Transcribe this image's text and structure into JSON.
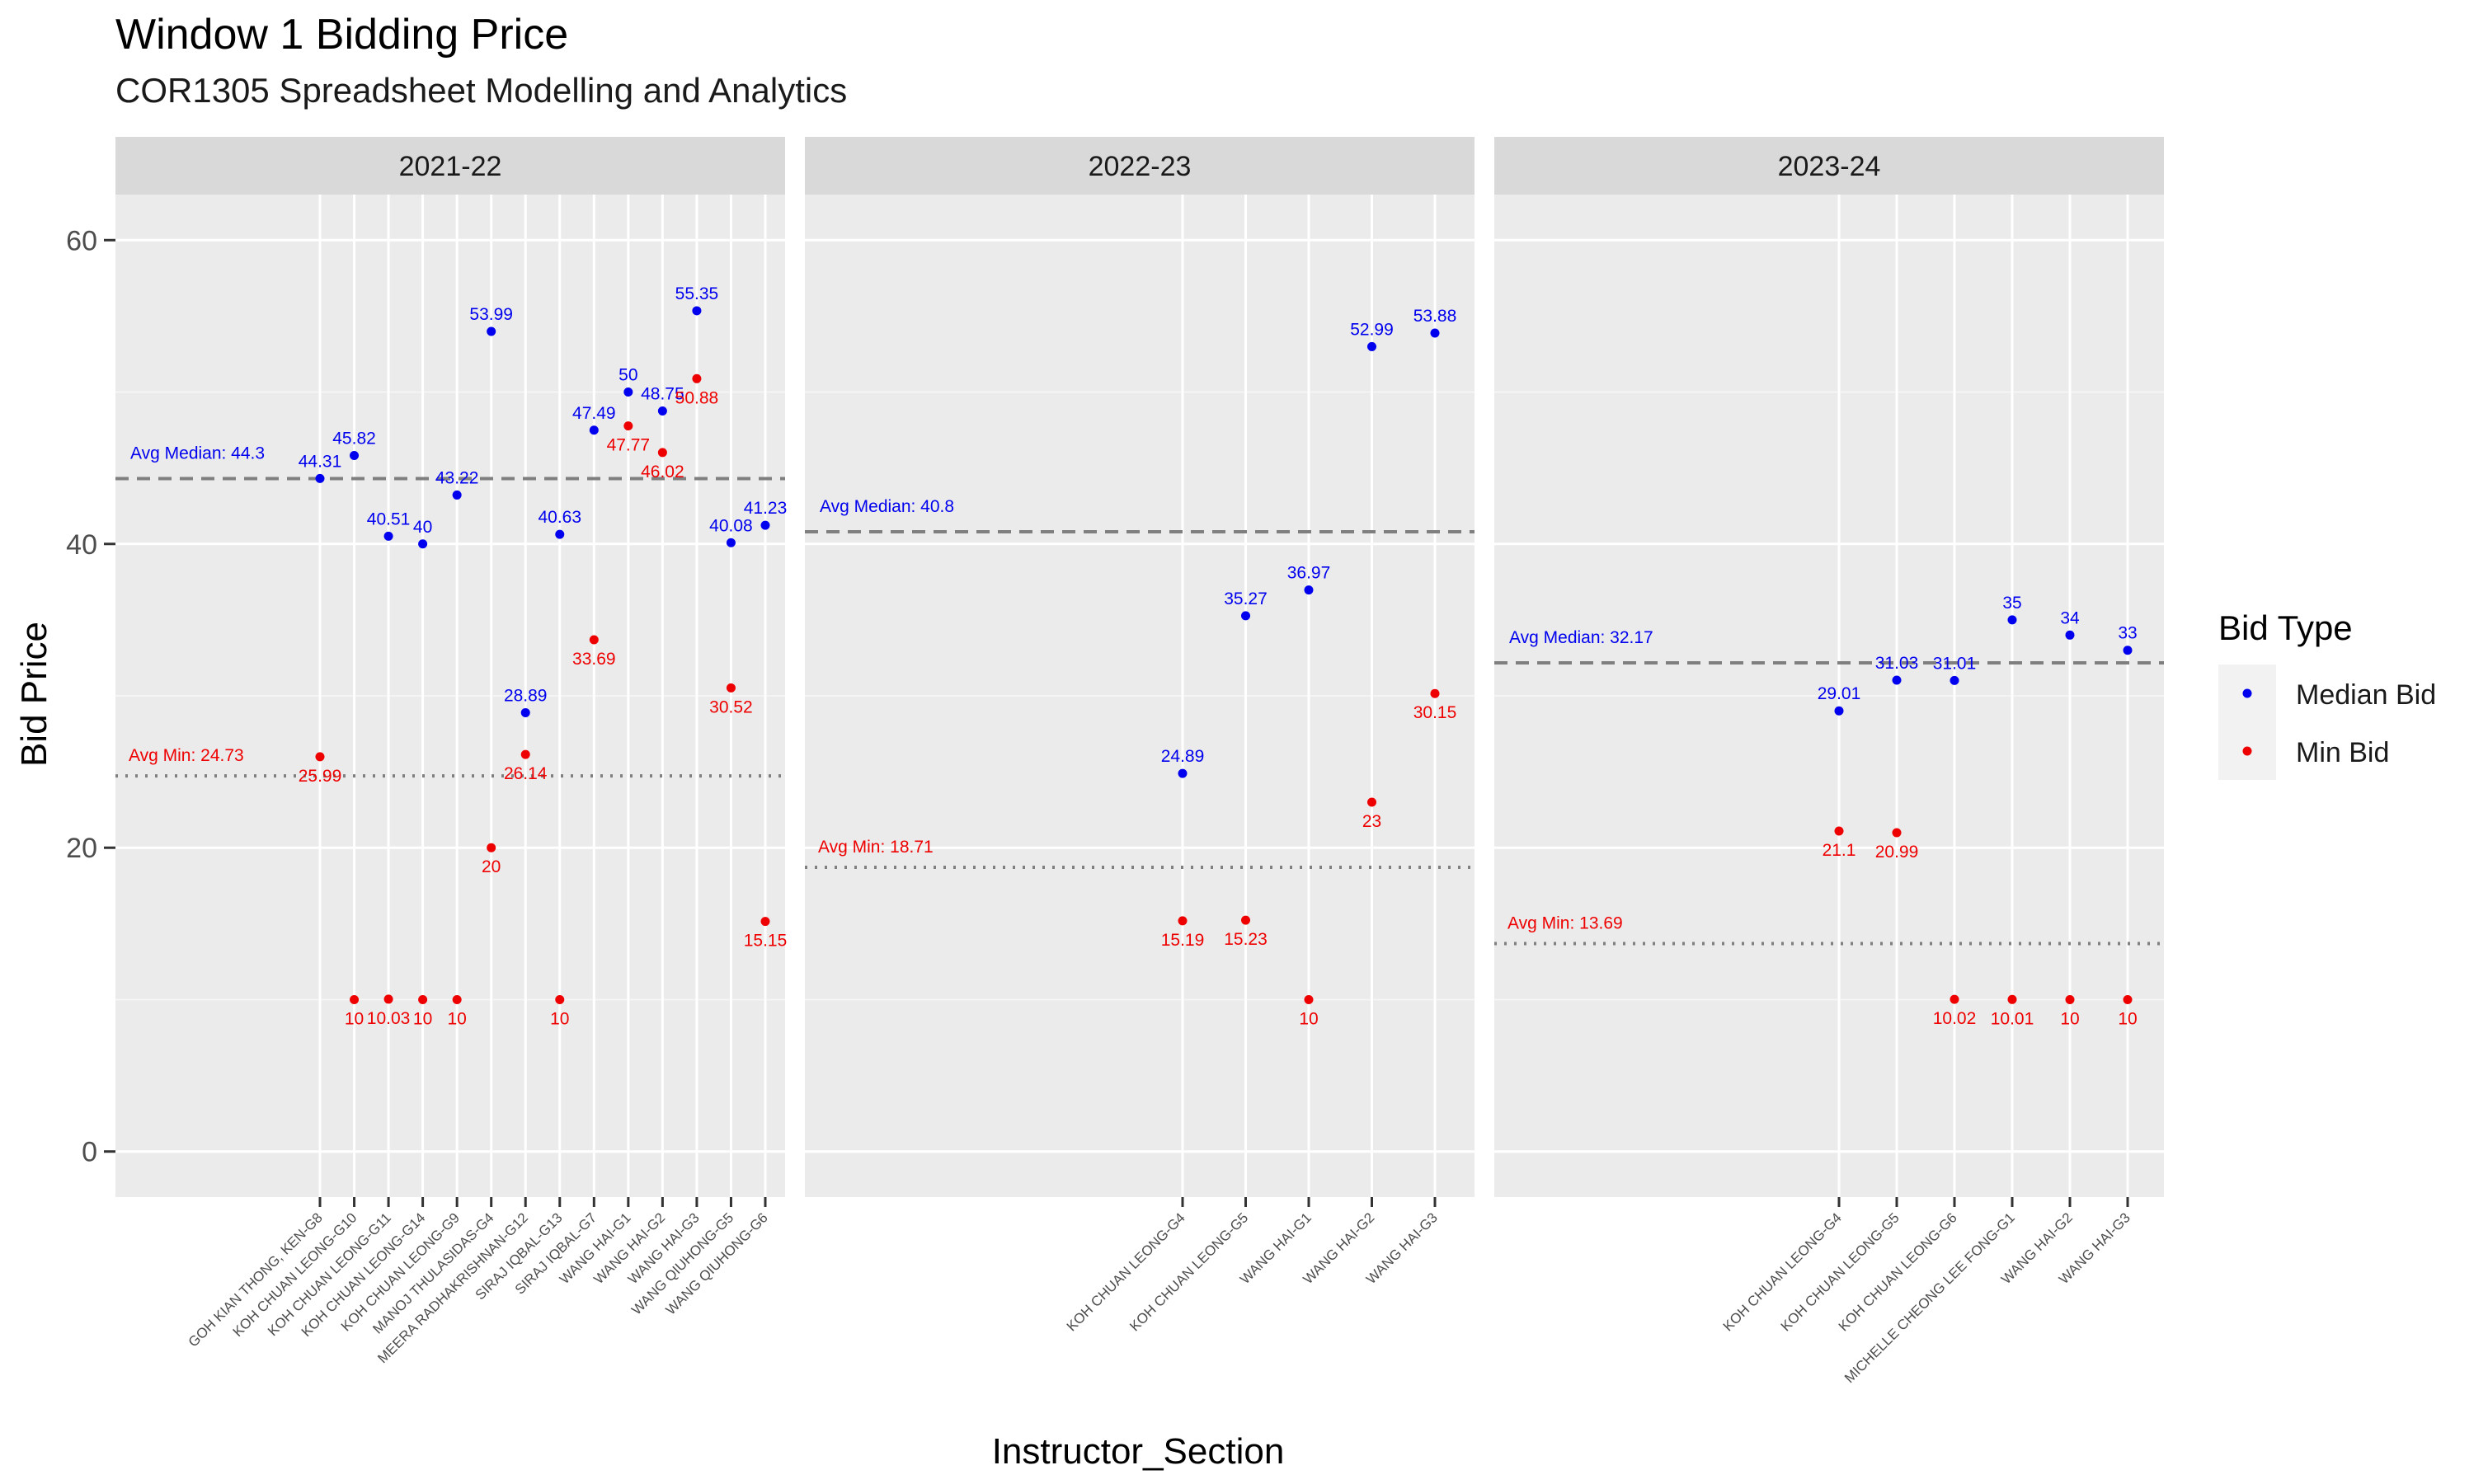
{
  "chart_data": {
    "type": "scatter",
    "title": "Window 1 Bidding Price",
    "subtitle": "COR1305 Spreadsheet Modelling and Analytics",
    "xlabel": "Instructor_Section",
    "ylabel": "Bid Price",
    "ylim": [
      -3,
      63
    ],
    "yticks": [
      0,
      20,
      40,
      60
    ],
    "grid": true,
    "legend": {
      "title": "Bid Type",
      "position": "right",
      "items": [
        {
          "name": "Median Bid",
          "color": "#0000ee"
        },
        {
          "name": "Min Bid",
          "color": "#ee0000"
        }
      ]
    },
    "panels": [
      {
        "facet": "2021-22",
        "categories": [
          "GOH KIAN THONG, KEN-G8",
          "KOH CHUAN LEONG-G10",
          "KOH CHUAN LEONG-G11",
          "KOH CHUAN LEONG-G14",
          "KOH CHUAN LEONG-G9",
          "MANOJ THULASIDAS-G4",
          "MEERA RADHAKRISHNAN-G12",
          "SIRAJ IQBAL-G13",
          "SIRAJ IQBAL-G7",
          "WANG HAI-G1",
          "WANG HAI-G2",
          "WANG HAI-G3",
          "WANG QIUHONG-G5",
          "WANG QIUHONG-G6"
        ],
        "series": [
          {
            "name": "Median Bid",
            "values": [
              44.31,
              45.82,
              40.51,
              40,
              43.22,
              53.99,
              28.89,
              40.63,
              47.49,
              50,
              48.75,
              55.35,
              40.08,
              41.23
            ],
            "labels": [
              "44.31",
              "45.82",
              "40.51",
              "40",
              "43.22",
              "53.99",
              "28.89",
              "40.63",
              "47.49",
              "50",
              "48.75",
              "55.35",
              "40.08",
              "41.23"
            ]
          },
          {
            "name": "Min Bid",
            "values": [
              25.99,
              10,
              10.03,
              10,
              10,
              20,
              26.14,
              10,
              33.69,
              47.77,
              46.02,
              50.88,
              30.52,
              15.15
            ],
            "labels": [
              "25.99",
              "10",
              "10.03",
              "10",
              "10",
              "20",
              "26.14",
              "10",
              "33.69",
              "47.77",
              "46.02",
              "50.88",
              "30.52",
              "15.15"
            ]
          }
        ],
        "avg_median": 44.3,
        "avg_median_label": "Avg Median: 44.3",
        "avg_min": 24.73,
        "avg_min_label": "Avg Min: 24.73"
      },
      {
        "facet": "2022-23",
        "categories": [
          "KOH CHUAN LEONG-G4",
          "KOH CHUAN LEONG-G5",
          "WANG HAI-G1",
          "WANG HAI-G2",
          "WANG HAI-G3"
        ],
        "series": [
          {
            "name": "Median Bid",
            "values": [
              24.89,
              35.27,
              36.97,
              52.99,
              53.88
            ],
            "labels": [
              "24.89",
              "35.27",
              "36.97",
              "52.99",
              "53.88"
            ]
          },
          {
            "name": "Min Bid",
            "values": [
              15.19,
              15.23,
              10,
              23,
              30.15
            ],
            "labels": [
              "15.19",
              "15.23",
              "10",
              "23",
              "30.15"
            ]
          }
        ],
        "avg_median": 40.8,
        "avg_median_label": "Avg Median: 40.8",
        "avg_min": 18.71,
        "avg_min_label": "Avg Min: 18.71"
      },
      {
        "facet": "2023-24",
        "categories": [
          "KOH CHUAN LEONG-G4",
          "KOH CHUAN LEONG-G5",
          "KOH CHUAN LEONG-G6",
          "MICHELLE CHEONG LEE FONG-G1",
          "WANG HAI-G2",
          "WANG HAI-G3"
        ],
        "series": [
          {
            "name": "Median Bid",
            "values": [
              29.01,
              31.03,
              31.01,
              35,
              34,
              33
            ],
            "labels": [
              "29.01",
              "31.03",
              "31.01",
              "35",
              "34",
              "33"
            ]
          },
          {
            "name": "Min Bid",
            "values": [
              21.1,
              20.99,
              10.02,
              10.01,
              10,
              10
            ],
            "labels": [
              "21.1",
              "20.99",
              "10.02",
              "10.01",
              "10",
              "10"
            ]
          }
        ],
        "avg_median": 32.17,
        "avg_median_label": "Avg Median: 32.17",
        "avg_min": 13.69,
        "avg_min_label": "Avg Min: 13.69"
      }
    ]
  }
}
